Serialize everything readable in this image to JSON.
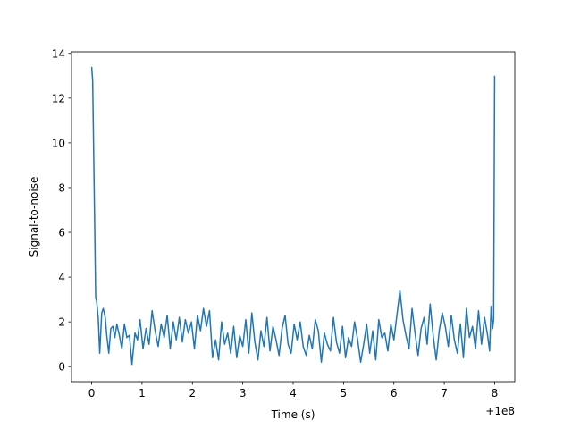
{
  "chart_data": {
    "type": "line",
    "title": "",
    "xlabel": "Time (s)",
    "ylabel": "Signal-to-noise",
    "x_offset_label": "+1e8",
    "xlim": [
      -0.4,
      8.4
    ],
    "ylim": [
      -0.67,
      14.07
    ],
    "xticks": [
      0,
      1,
      2,
      3,
      4,
      5,
      6,
      7,
      8
    ],
    "xtick_labels": [
      "0",
      "1",
      "2",
      "3",
      "4",
      "5",
      "6",
      "7",
      "8"
    ],
    "yticks": [
      0,
      2,
      4,
      6,
      8,
      10,
      12,
      14
    ],
    "ytick_labels": [
      "0",
      "2",
      "4",
      "6",
      "8",
      "10",
      "12",
      "14"
    ],
    "grid": false,
    "colors": {
      "line": "#1f77b4"
    },
    "series": [
      {
        "x": [
          0.0,
          0.02,
          0.05,
          0.08,
          0.1,
          0.13,
          0.16,
          0.2,
          0.23,
          0.27,
          0.3,
          0.34,
          0.38,
          0.42,
          0.46,
          0.5,
          0.55,
          0.6,
          0.65,
          0.7,
          0.75,
          0.8,
          0.86,
          0.91,
          0.96,
          1.02,
          1.08,
          1.14,
          1.2,
          1.26,
          1.32,
          1.38,
          1.44,
          1.5,
          1.56,
          1.62,
          1.68,
          1.74,
          1.8,
          1.86,
          1.92,
          1.98,
          2.04,
          2.1,
          2.16,
          2.22,
          2.28,
          2.34,
          2.4,
          2.46,
          2.52,
          2.58,
          2.64,
          2.7,
          2.76,
          2.82,
          2.88,
          2.94,
          3.0,
          3.06,
          3.12,
          3.18,
          3.24,
          3.3,
          3.36,
          3.42,
          3.48,
          3.54,
          3.6,
          3.66,
          3.72,
          3.78,
          3.84,
          3.9,
          3.96,
          4.02,
          4.08,
          4.14,
          4.2,
          4.26,
          4.32,
          4.38,
          4.44,
          4.5,
          4.56,
          4.62,
          4.68,
          4.74,
          4.8,
          4.86,
          4.92,
          4.98,
          5.04,
          5.1,
          5.16,
          5.22,
          5.28,
          5.34,
          5.4,
          5.46,
          5.52,
          5.58,
          5.64,
          5.7,
          5.76,
          5.82,
          5.88,
          5.94,
          6.0,
          6.06,
          6.12,
          6.18,
          6.24,
          6.3,
          6.36,
          6.42,
          6.48,
          6.54,
          6.6,
          6.66,
          6.72,
          6.78,
          6.84,
          6.9,
          6.96,
          7.02,
          7.08,
          7.14,
          7.2,
          7.26,
          7.32,
          7.38,
          7.44,
          7.5,
          7.56,
          7.62,
          7.68,
          7.74,
          7.8,
          7.86,
          7.9,
          7.93,
          7.96,
          7.98,
          8.0
        ],
        "y": [
          13.4,
          12.8,
          8.0,
          3.1,
          2.9,
          2.2,
          0.6,
          2.4,
          2.6,
          2.2,
          1.4,
          0.6,
          1.7,
          1.8,
          1.3,
          1.9,
          1.4,
          0.8,
          1.9,
          1.3,
          1.4,
          0.1,
          1.5,
          1.2,
          2.1,
          0.8,
          1.7,
          1.0,
          2.5,
          1.6,
          0.9,
          1.9,
          1.3,
          2.3,
          0.8,
          2.0,
          1.2,
          2.2,
          1.1,
          2.1,
          1.5,
          2.0,
          0.8,
          2.3,
          1.6,
          2.6,
          1.8,
          2.5,
          0.4,
          1.2,
          0.3,
          2.0,
          1.0,
          1.5,
          0.6,
          1.8,
          0.4,
          1.4,
          0.9,
          2.1,
          0.6,
          2.4,
          1.1,
          0.3,
          1.6,
          0.9,
          2.2,
          0.7,
          1.8,
          1.2,
          0.5,
          1.7,
          2.3,
          1.0,
          0.6,
          1.9,
          1.2,
          2.0,
          0.9,
          0.5,
          1.4,
          0.8,
          2.1,
          1.6,
          0.2,
          1.5,
          1.0,
          0.7,
          2.2,
          1.1,
          0.6,
          1.8,
          0.4,
          1.3,
          0.9,
          2.0,
          1.2,
          0.2,
          1.0,
          1.9,
          0.6,
          1.6,
          0.3,
          2.1,
          1.3,
          1.5,
          0.7,
          1.9,
          1.2,
          2.3,
          3.4,
          2.1,
          1.4,
          0.8,
          2.6,
          1.5,
          0.5,
          1.7,
          2.2,
          1.0,
          2.8,
          1.4,
          0.3,
          1.6,
          2.4,
          1.8,
          0.9,
          2.3,
          1.2,
          0.6,
          1.9,
          0.4,
          2.6,
          1.3,
          1.8,
          0.8,
          2.5,
          1.0,
          2.2,
          1.4,
          0.7,
          2.7,
          1.7,
          2.1,
          13.0
        ],
        "color": "#1f77b4"
      }
    ]
  }
}
